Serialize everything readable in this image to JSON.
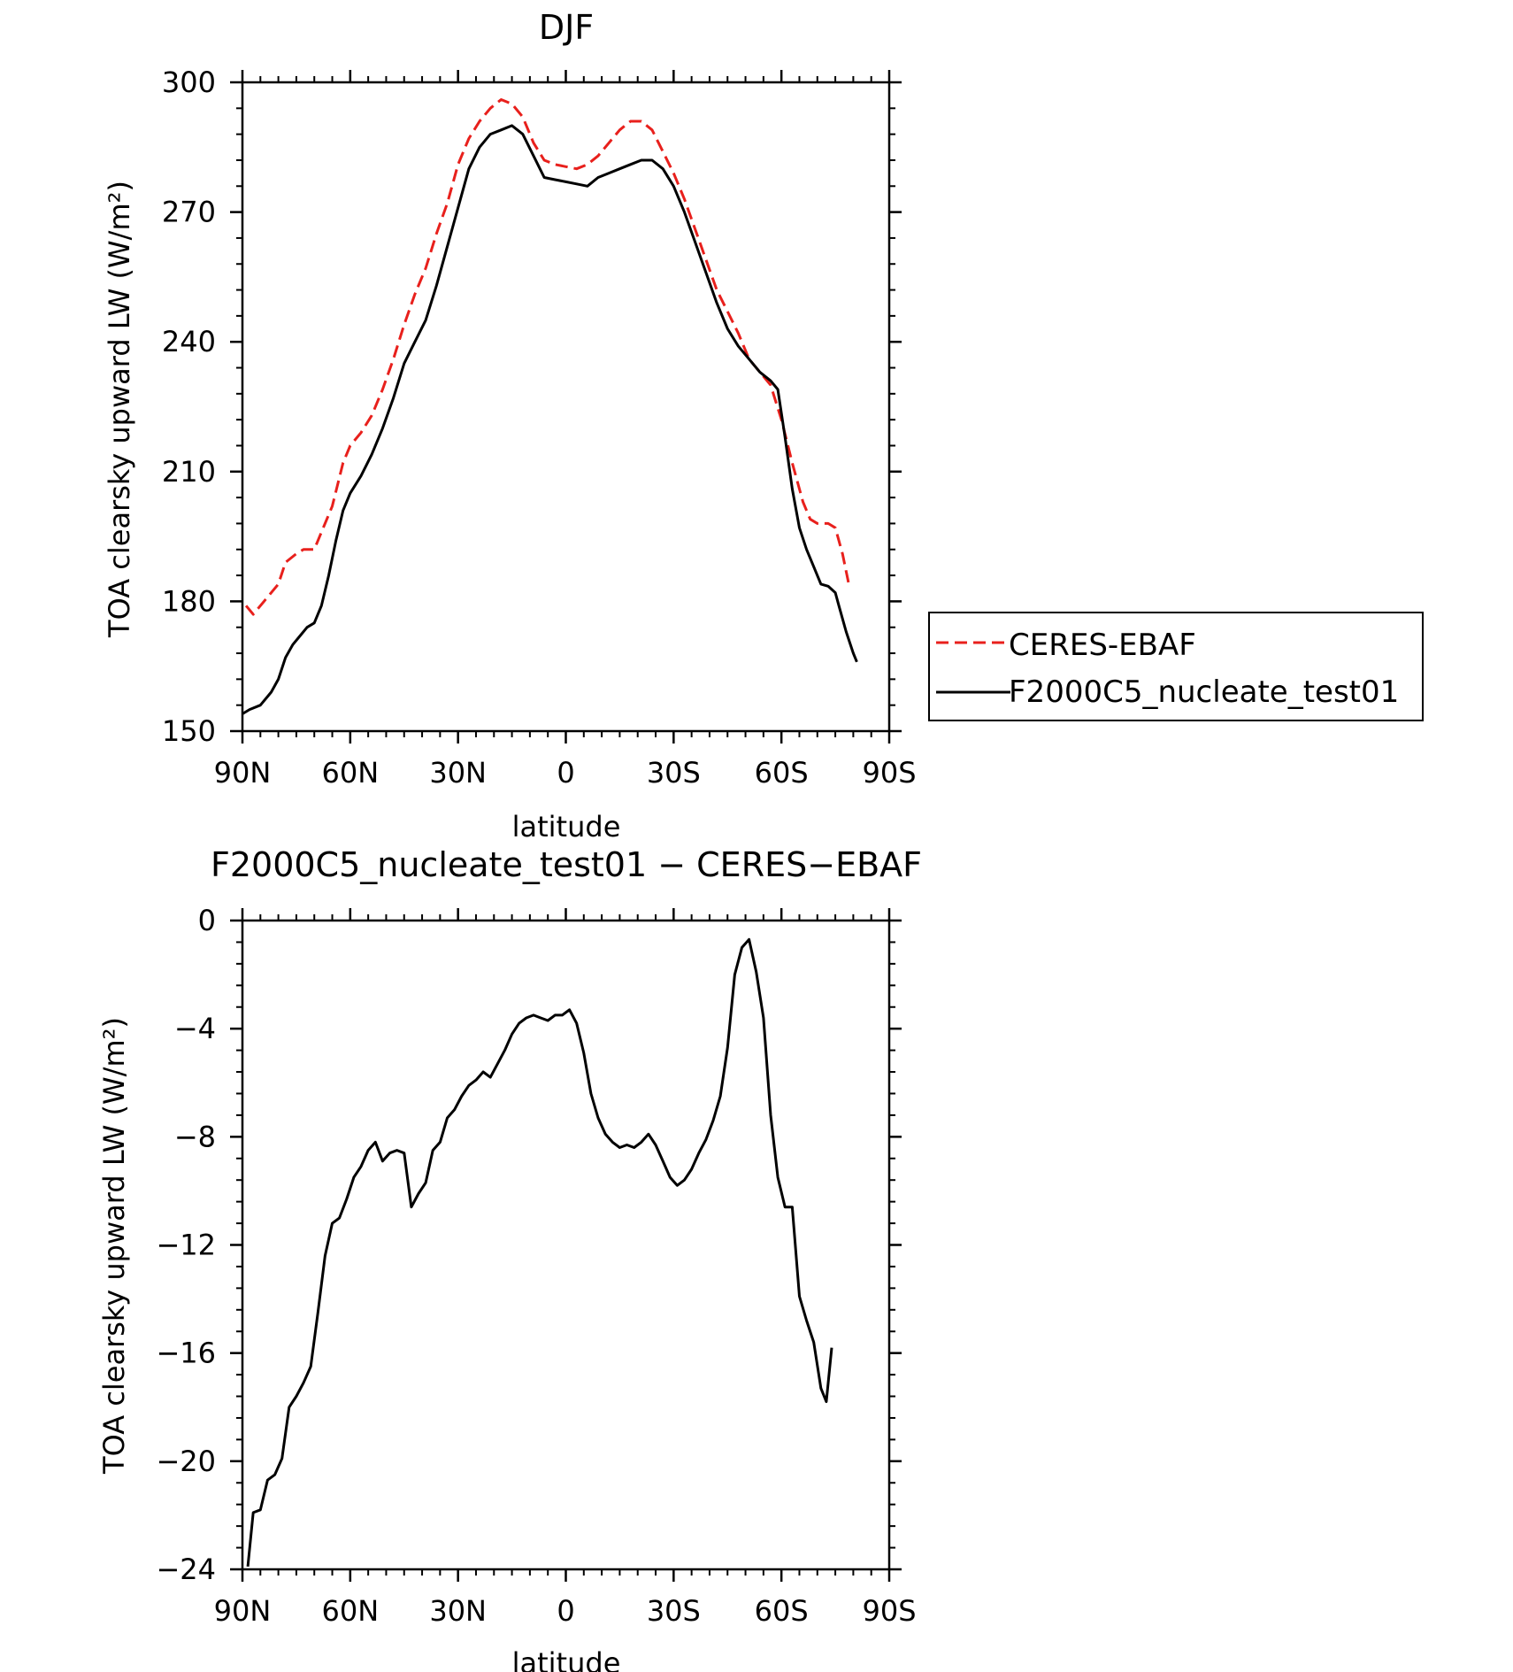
{
  "chart_data": [
    {
      "type": "line",
      "title": "DJF",
      "xlabel": "latitude",
      "ylabel": "TOA clearsky upward LW (W/m²)",
      "xlim": [
        90,
        -90
      ],
      "ylim": [
        150,
        300
      ],
      "xticks": [
        {
          "value": 90,
          "label": "90N"
        },
        {
          "value": 60,
          "label": "60N"
        },
        {
          "value": 30,
          "label": "30N"
        },
        {
          "value": 0,
          "label": "0"
        },
        {
          "value": -30,
          "label": "30S"
        },
        {
          "value": -60,
          "label": "60S"
        },
        {
          "value": -90,
          "label": "90S"
        }
      ],
      "yticks": [
        150,
        180,
        210,
        240,
        270,
        300
      ],
      "grid": false,
      "legend_position": "outside-right",
      "series": [
        {
          "name": "CERES-EBAF",
          "color": "#e8201c",
          "dash": true,
          "points": [
            [
              89,
              179
            ],
            [
              87,
              177
            ],
            [
              84,
              180
            ],
            [
              80,
              184
            ],
            [
              78,
              189
            ],
            [
              75,
              191
            ],
            [
              73,
              192
            ],
            [
              70,
              192
            ],
            [
              68,
              196
            ],
            [
              65,
              202
            ],
            [
              62,
              212
            ],
            [
              60,
              216
            ],
            [
              57,
              219
            ],
            [
              54,
              223
            ],
            [
              51,
              229
            ],
            [
              48,
              236
            ],
            [
              45,
              244
            ],
            [
              42,
              251
            ],
            [
              39,
              257
            ],
            [
              36,
              265
            ],
            [
              33,
              272
            ],
            [
              30,
              281
            ],
            [
              27,
              287
            ],
            [
              24,
              291
            ],
            [
              21,
              294
            ],
            [
              18,
              296
            ],
            [
              15,
              295
            ],
            [
              12,
              292
            ],
            [
              9,
              286
            ],
            [
              6,
              282
            ],
            [
              3,
              281
            ],
            [
              0,
              280.5
            ],
            [
              -3,
              280
            ],
            [
              -6,
              281
            ],
            [
              -9,
              283
            ],
            [
              -12,
              286
            ],
            [
              -15,
              289
            ],
            [
              -18,
              291
            ],
            [
              -21,
              291
            ],
            [
              -24,
              289
            ],
            [
              -27,
              284
            ],
            [
              -30,
              279
            ],
            [
              -33,
              273
            ],
            [
              -36,
              266
            ],
            [
              -39,
              259
            ],
            [
              -42,
              252
            ],
            [
              -45,
              247
            ],
            [
              -48,
              242
            ],
            [
              -51,
              236
            ],
            [
              -54,
              233
            ],
            [
              -57,
              230
            ],
            [
              -60,
              222
            ],
            [
              -63,
              212
            ],
            [
              -66,
              203
            ],
            [
              -68,
              199
            ],
            [
              -70,
              198
            ],
            [
              -73,
              198
            ],
            [
              -75,
              197
            ],
            [
              -77,
              191
            ],
            [
              -79,
              183
            ]
          ]
        },
        {
          "name": "F2000C5_nucleate_test01",
          "color": "#000000",
          "dash": false,
          "points": [
            [
              90,
              154
            ],
            [
              88,
              155
            ],
            [
              85,
              156
            ],
            [
              82,
              159
            ],
            [
              80,
              162
            ],
            [
              78,
              167
            ],
            [
              76,
              170
            ],
            [
              74,
              172
            ],
            [
              72,
              174
            ],
            [
              70,
              175
            ],
            [
              68,
              179
            ],
            [
              66,
              186
            ],
            [
              64,
              194
            ],
            [
              62,
              201
            ],
            [
              60,
              205
            ],
            [
              57,
              209
            ],
            [
              54,
              214
            ],
            [
              51,
              220
            ],
            [
              48,
              227
            ],
            [
              45,
              235
            ],
            [
              42,
              240
            ],
            [
              39,
              245
            ],
            [
              36,
              253
            ],
            [
              33,
              262
            ],
            [
              30,
              271
            ],
            [
              27,
              280
            ],
            [
              24,
              285
            ],
            [
              21,
              288
            ],
            [
              18,
              289
            ],
            [
              15,
              290
            ],
            [
              12,
              288
            ],
            [
              9,
              283
            ],
            [
              6,
              278
            ],
            [
              3,
              277.5
            ],
            [
              0,
              277
            ],
            [
              -3,
              276.5
            ],
            [
              -6,
              276
            ],
            [
              -9,
              278
            ],
            [
              -12,
              279
            ],
            [
              -15,
              280
            ],
            [
              -18,
              281
            ],
            [
              -21,
              282
            ],
            [
              -24,
              282
            ],
            [
              -27,
              280
            ],
            [
              -30,
              276
            ],
            [
              -33,
              270
            ],
            [
              -36,
              263
            ],
            [
              -39,
              256
            ],
            [
              -42,
              249
            ],
            [
              -45,
              243
            ],
            [
              -48,
              239
            ],
            [
              -51,
              236
            ],
            [
              -54,
              233
            ],
            [
              -57,
              231
            ],
            [
              -59,
              229
            ],
            [
              -61,
              218
            ],
            [
              -63,
              206
            ],
            [
              -65,
              197
            ],
            [
              -67,
              192
            ],
            [
              -69,
              188
            ],
            [
              -71,
              184
            ],
            [
              -73,
              183.5
            ],
            [
              -75,
              182
            ],
            [
              -76,
              179
            ],
            [
              -78,
              173
            ],
            [
              -80,
              168
            ],
            [
              -81,
              166
            ]
          ]
        }
      ]
    },
    {
      "type": "line",
      "title": "F2000C5_nucleate_test01 − CERES−EBAF",
      "xlabel": "latitude",
      "ylabel": "TOA clearsky upward LW (W/m²)",
      "xlim": [
        90,
        -90
      ],
      "ylim": [
        -24,
        0
      ],
      "xticks": [
        {
          "value": 90,
          "label": "90N"
        },
        {
          "value": 60,
          "label": "60N"
        },
        {
          "value": 30,
          "label": "30N"
        },
        {
          "value": 0,
          "label": "0"
        },
        {
          "value": -30,
          "label": "30S"
        },
        {
          "value": -60,
          "label": "60S"
        },
        {
          "value": -90,
          "label": "90S"
        }
      ],
      "yticks": [
        {
          "value": -24,
          "label": "−24"
        },
        {
          "value": -20,
          "label": "−20"
        },
        {
          "value": -16,
          "label": "−16"
        },
        {
          "value": -12,
          "label": "−12"
        },
        {
          "value": -8,
          "label": "−8"
        },
        {
          "value": -4,
          "label": "−4"
        },
        {
          "value": 0,
          "label": "0"
        }
      ],
      "grid": false,
      "series": [
        {
          "color": "#000000",
          "dash": false,
          "points": [
            [
              88.5,
              -23.9
            ],
            [
              87,
              -21.9
            ],
            [
              85,
              -21.8
            ],
            [
              83,
              -20.7
            ],
            [
              81,
              -20.5
            ],
            [
              79,
              -19.9
            ],
            [
              77,
              -18.0
            ],
            [
              75,
              -17.6
            ],
            [
              73,
              -17.1
            ],
            [
              71,
              -16.5
            ],
            [
              69,
              -14.5
            ],
            [
              67,
              -12.4
            ],
            [
              65,
              -11.2
            ],
            [
              63,
              -11.0
            ],
            [
              61,
              -10.3
            ],
            [
              59,
              -9.5
            ],
            [
              57,
              -9.1
            ],
            [
              55,
              -8.5
            ],
            [
              53,
              -8.2
            ],
            [
              51,
              -8.9
            ],
            [
              49,
              -8.6
            ],
            [
              47,
              -8.5
            ],
            [
              45,
              -8.6
            ],
            [
              43,
              -10.6
            ],
            [
              41,
              -10.1
            ],
            [
              39,
              -9.7
            ],
            [
              37,
              -8.5
            ],
            [
              35,
              -8.2
            ],
            [
              33,
              -7.3
            ],
            [
              31,
              -7.0
            ],
            [
              29,
              -6.5
            ],
            [
              27,
              -6.1
            ],
            [
              25,
              -5.9
            ],
            [
              23,
              -5.6
            ],
            [
              21,
              -5.8
            ],
            [
              19,
              -5.3
            ],
            [
              17,
              -4.8
            ],
            [
              15,
              -4.2
            ],
            [
              13,
              -3.8
            ],
            [
              11,
              -3.6
            ],
            [
              9,
              -3.5
            ],
            [
              7,
              -3.6
            ],
            [
              5,
              -3.7
            ],
            [
              3,
              -3.5
            ],
            [
              1,
              -3.5
            ],
            [
              -1,
              -3.3
            ],
            [
              -3,
              -3.8
            ],
            [
              -5,
              -4.9
            ],
            [
              -7,
              -6.4
            ],
            [
              -9,
              -7.3
            ],
            [
              -11,
              -7.9
            ],
            [
              -13,
              -8.2
            ],
            [
              -15,
              -8.4
            ],
            [
              -17,
              -8.3
            ],
            [
              -19,
              -8.4
            ],
            [
              -21,
              -8.2
            ],
            [
              -23,
              -7.9
            ],
            [
              -25,
              -8.3
            ],
            [
              -27,
              -8.9
            ],
            [
              -29,
              -9.5
            ],
            [
              -31,
              -9.8
            ],
            [
              -33,
              -9.6
            ],
            [
              -35,
              -9.2
            ],
            [
              -37,
              -8.6
            ],
            [
              -39,
              -8.1
            ],
            [
              -41,
              -7.4
            ],
            [
              -43,
              -6.5
            ],
            [
              -45,
              -4.7
            ],
            [
              -47,
              -2.0
            ],
            [
              -49,
              -1.0
            ],
            [
              -51,
              -0.7
            ],
            [
              -53,
              -1.9
            ],
            [
              -55,
              -3.6
            ],
            [
              -57,
              -7.2
            ],
            [
              -59,
              -9.5
            ],
            [
              -61,
              -10.6
            ],
            [
              -63,
              -10.6
            ],
            [
              -65,
              -13.9
            ],
            [
              -67,
              -14.8
            ],
            [
              -69,
              -15.6
            ],
            [
              -71,
              -17.3
            ],
            [
              -72.5,
              -17.8
            ],
            [
              -74,
              -15.8
            ]
          ]
        }
      ]
    }
  ]
}
